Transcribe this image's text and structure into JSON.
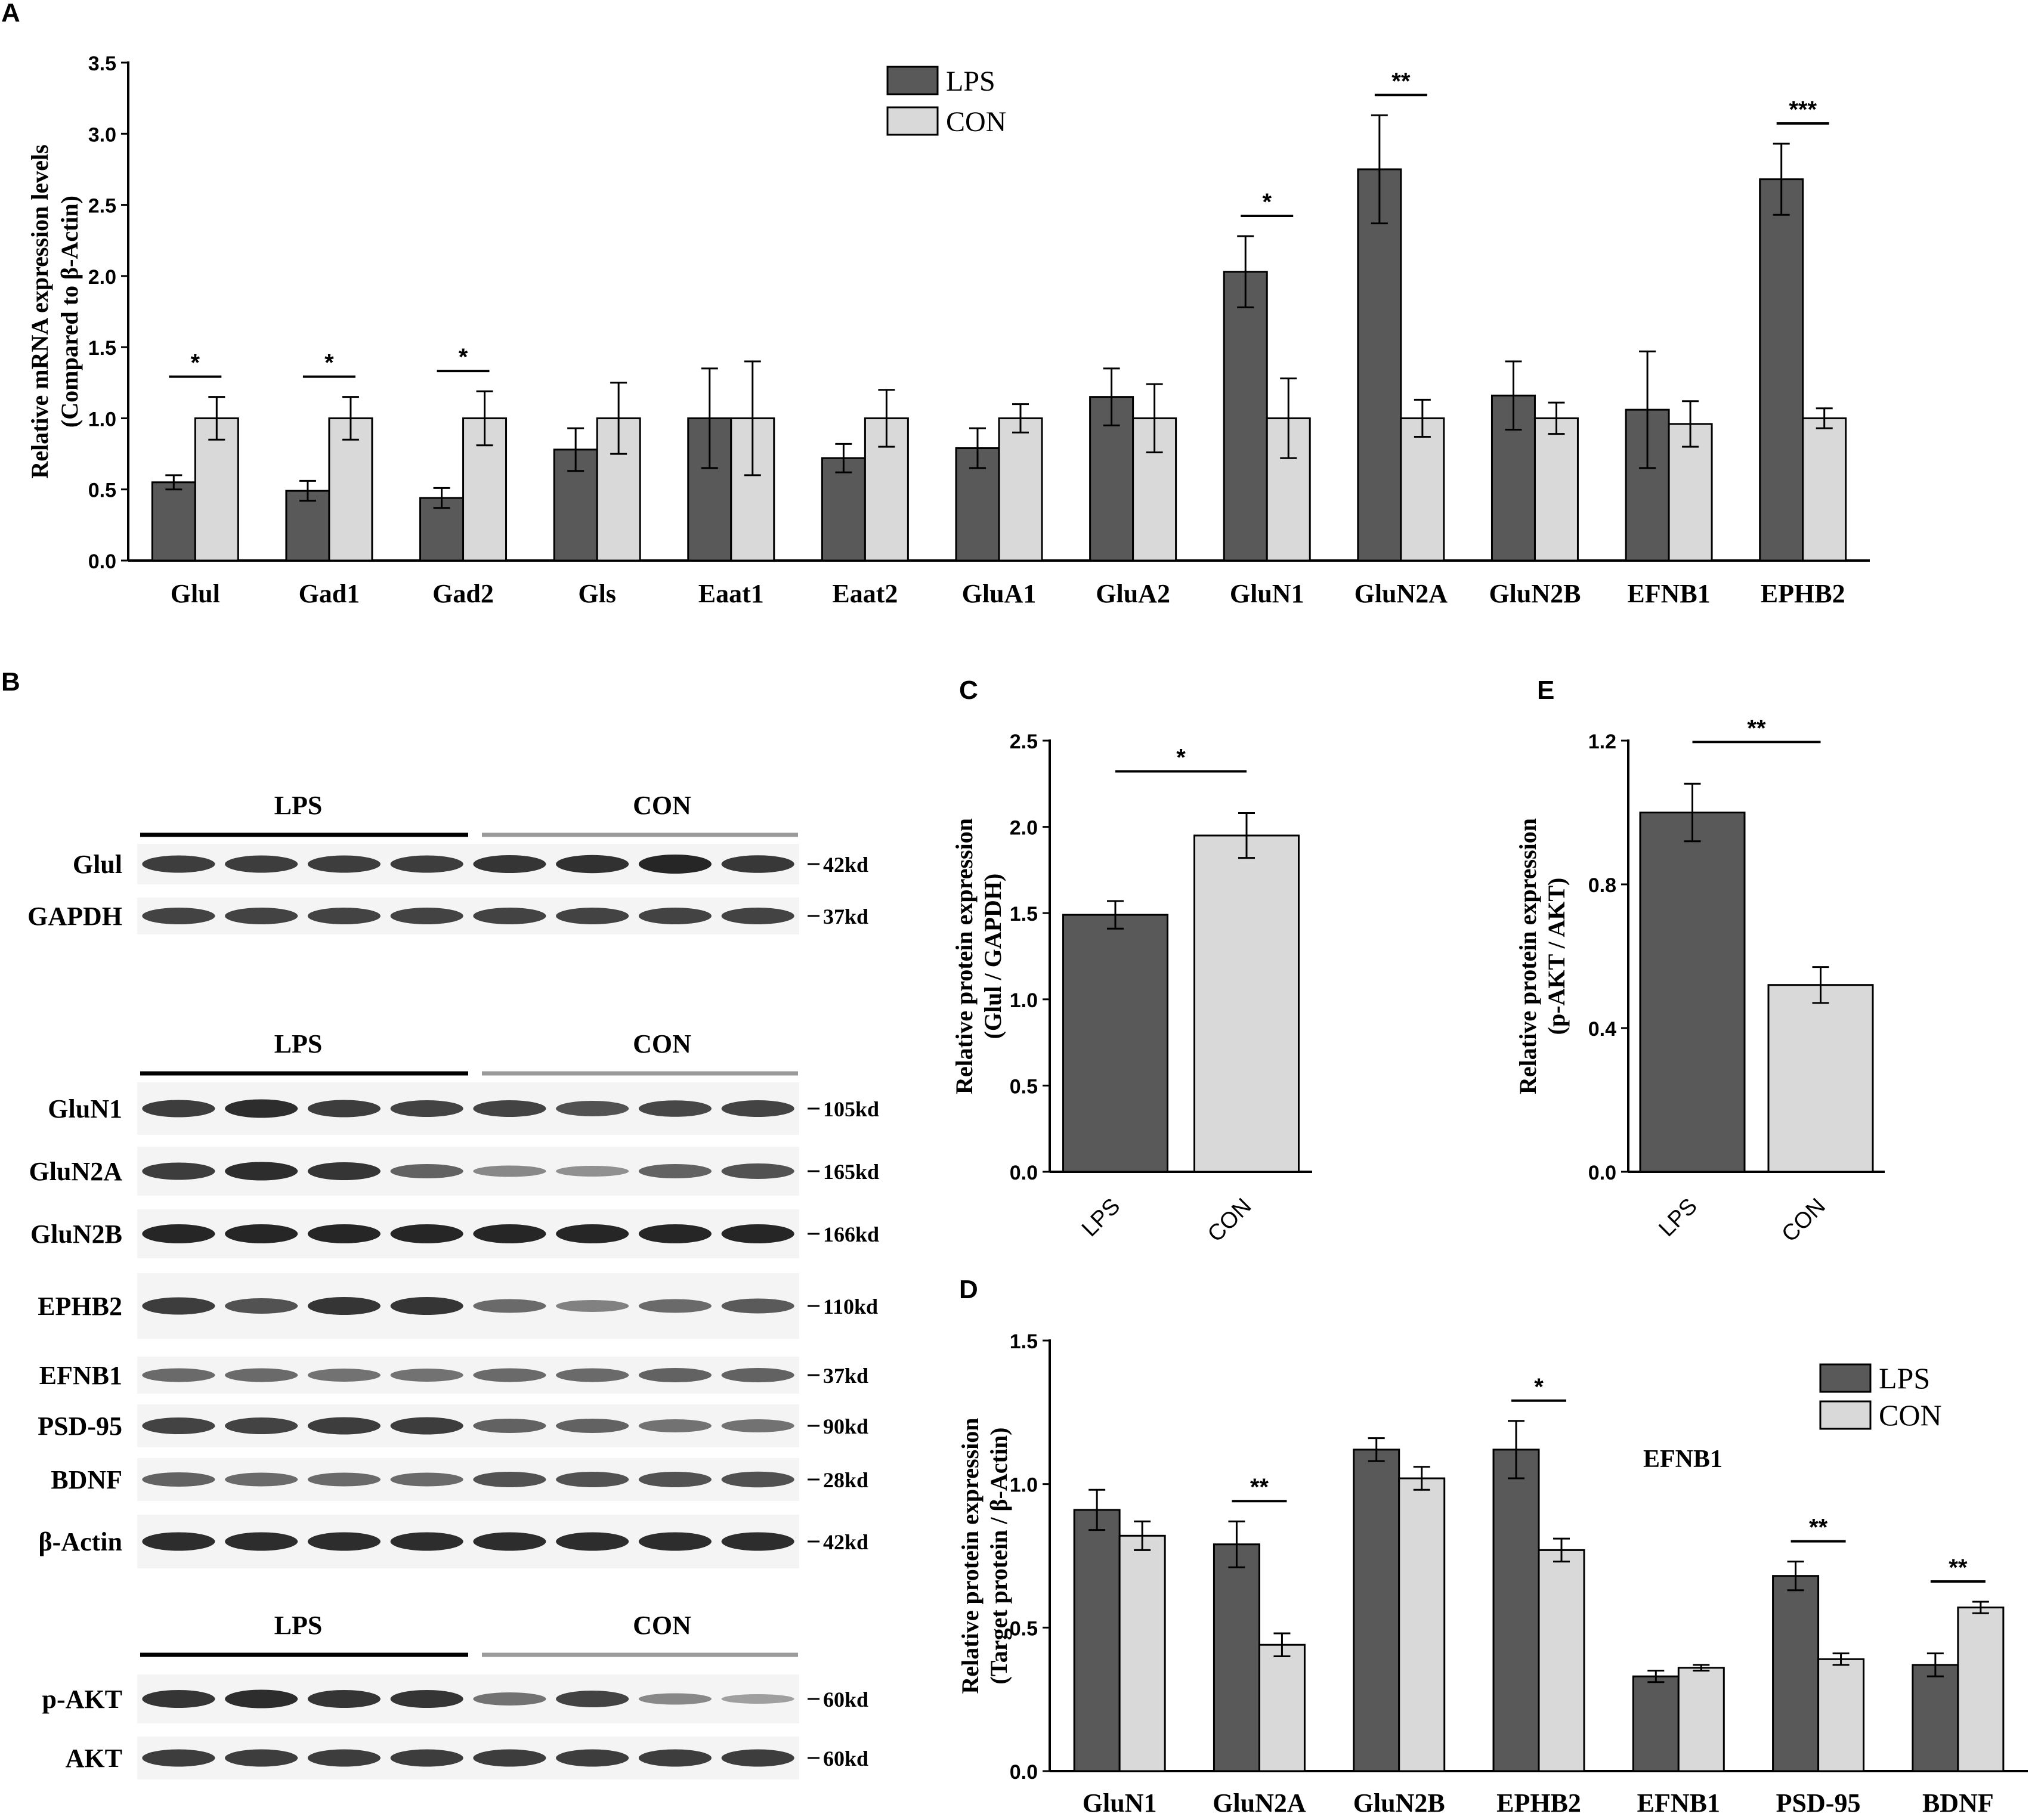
{
  "colors": {
    "lps": "#595959",
    "con": "#d9d9d9",
    "axis": "#000000",
    "blot_bg": "#f4f4f4",
    "band": "#1a1a1a",
    "con_rule": "#9a9a9a"
  },
  "legend": {
    "lps": "LPS",
    "con": "CON"
  },
  "panel_letters": {
    "a": "A",
    "b": "B",
    "c": "C",
    "d": "D",
    "e": "E"
  },
  "chart_data": [
    {
      "id": "A",
      "type": "bar",
      "ylabel": [
        "Relative mRNA expression levels",
        "(Compared to β-Actin)"
      ],
      "ylim": [
        0,
        3.5
      ],
      "yticks": [
        "0.0",
        "0.5",
        "1.0",
        "1.5",
        "2.0",
        "2.5",
        "3.0",
        "3.5"
      ],
      "categories": [
        "Glul",
        "Gad1",
        "Gad2",
        "Gls",
        "Eaat1",
        "Eaat2",
        "GluA1",
        "GluA2",
        "GluN1",
        "GluN2A",
        "GluN2B",
        "EFNB1",
        "EPHB2"
      ],
      "series": [
        {
          "name": "LPS",
          "values": [
            0.55,
            0.49,
            0.44,
            0.78,
            1.0,
            0.72,
            0.79,
            1.15,
            2.03,
            2.75,
            1.16,
            1.06,
            2.68
          ],
          "errors": [
            0.05,
            0.07,
            0.07,
            0.15,
            0.35,
            0.1,
            0.14,
            0.2,
            0.25,
            0.38,
            0.24,
            0.41,
            0.25
          ]
        },
        {
          "name": "CON",
          "values": [
            1.0,
            1.0,
            1.0,
            1.0,
            1.0,
            1.0,
            1.0,
            1.0,
            1.0,
            1.0,
            1.0,
            0.96,
            1.0
          ],
          "errors": [
            0.15,
            0.15,
            0.19,
            0.25,
            0.4,
            0.2,
            0.1,
            0.24,
            0.28,
            0.13,
            0.11,
            0.16,
            0.07
          ]
        }
      ],
      "annotations": [
        {
          "index": 0,
          "text": "*"
        },
        {
          "index": 1,
          "text": "*"
        },
        {
          "index": 2,
          "text": "*"
        },
        {
          "index": 8,
          "text": "*"
        },
        {
          "index": 9,
          "text": "**"
        },
        {
          "index": 12,
          "text": "***"
        }
      ],
      "legend": "top-center",
      "grid": false
    },
    {
      "id": "C",
      "type": "bar",
      "ylabel": [
        "Relative protein expression",
        "(Glul / GAPDH)"
      ],
      "ylim": [
        0,
        2.5
      ],
      "yticks": [
        "0.0",
        "0.5",
        "1.0",
        "1.5",
        "2.0",
        "2.5"
      ],
      "categories": [
        "LPS",
        "CON"
      ],
      "values": [
        1.49,
        1.95
      ],
      "errors": [
        0.08,
        0.13
      ],
      "annotation": "*",
      "grid": false
    },
    {
      "id": "E",
      "type": "bar",
      "ylabel": [
        "Relative protein expression",
        "(p-AKT / AKT)"
      ],
      "ylim": [
        0,
        1.2
      ],
      "yticks": [
        "0.0",
        "0.4",
        "0.8",
        "1.2"
      ],
      "categories": [
        "LPS",
        "CON"
      ],
      "values": [
        1.0,
        0.52
      ],
      "errors": [
        0.08,
        0.05
      ],
      "annotation": "**",
      "grid": false
    },
    {
      "id": "D",
      "type": "bar",
      "ylabel": [
        "Relative protein expression",
        "(Target protein / β-Actin)"
      ],
      "ylim": [
        0,
        1.5
      ],
      "yticks": [
        "0.0",
        "0.5",
        "1.0",
        "1.5"
      ],
      "categories": [
        "GluN1",
        "GluN2A",
        "GluN2B",
        "EPHB2",
        "EFNB1",
        "PSD-95",
        "BDNF"
      ],
      "series": [
        {
          "name": "LPS",
          "values": [
            0.91,
            0.79,
            1.12,
            1.12,
            0.33,
            0.68,
            0.37
          ],
          "errors": [
            0.07,
            0.08,
            0.04,
            0.1,
            0.02,
            0.05,
            0.04
          ]
        },
        {
          "name": "CON",
          "values": [
            0.82,
            0.44,
            1.02,
            0.77,
            0.36,
            0.39,
            0.57
          ],
          "errors": [
            0.05,
            0.04,
            0.04,
            0.04,
            0.01,
            0.02,
            0.02
          ]
        }
      ],
      "annotations": [
        {
          "index": 1,
          "text": "**"
        },
        {
          "index": 3,
          "text": "*"
        },
        {
          "index": 5,
          "text": "**"
        },
        {
          "index": 6,
          "text": "**"
        }
      ],
      "floating_label": "EFNB1",
      "legend": "top-right",
      "grid": false
    }
  ],
  "blots": {
    "group_lps": "LPS",
    "group_con": "CON",
    "section1": {
      "rows": [
        {
          "label": "Glul",
          "mw": "42kd",
          "lps": [
            0.85,
            0.85,
            0.85,
            0.85
          ],
          "con": [
            0.9,
            0.92,
            1.0,
            0.88
          ]
        },
        {
          "label": "GAPDH",
          "mw": "37kd",
          "lps": [
            0.8,
            0.8,
            0.8,
            0.8
          ],
          "con": [
            0.8,
            0.8,
            0.8,
            0.8
          ]
        }
      ]
    },
    "section2": {
      "rows": [
        {
          "label": "GluN1",
          "mw": "105kd",
          "lps": [
            0.85,
            0.95,
            0.85,
            0.8
          ],
          "con": [
            0.8,
            0.7,
            0.78,
            0.8
          ]
        },
        {
          "label": "GluN2A",
          "mw": "165kd",
          "lps": [
            0.85,
            0.95,
            0.9,
            0.6
          ],
          "con": [
            0.35,
            0.3,
            0.6,
            0.7
          ]
        },
        {
          "label": "GluN2B",
          "mw": "166kd",
          "lps": [
            1.0,
            1.0,
            1.0,
            1.0
          ],
          "con": [
            1.0,
            1.0,
            1.0,
            1.0
          ]
        },
        {
          "label": "EPHB2",
          "mw": "110kd",
          "lps": [
            0.85,
            0.7,
            0.9,
            0.9
          ],
          "con": [
            0.55,
            0.4,
            0.55,
            0.65
          ]
        },
        {
          "label": "EFNB1",
          "mw": "37kd",
          "lps": [
            0.55,
            0.55,
            0.5,
            0.5
          ],
          "con": [
            0.55,
            0.55,
            0.6,
            0.6
          ]
        },
        {
          "label": "PSD-95",
          "mw": "90kd",
          "lps": [
            0.8,
            0.8,
            0.85,
            0.85
          ],
          "con": [
            0.6,
            0.6,
            0.5,
            0.5
          ]
        },
        {
          "label": "BDNF",
          "mw": "28kd",
          "lps": [
            0.6,
            0.55,
            0.55,
            0.55
          ],
          "con": [
            0.7,
            0.7,
            0.7,
            0.72
          ]
        },
        {
          "label": "β-Actin",
          "mw": "42kd",
          "lps": [
            0.95,
            0.95,
            0.95,
            0.95
          ],
          "con": [
            0.95,
            0.95,
            0.95,
            0.95
          ]
        }
      ]
    },
    "section3": {
      "rows": [
        {
          "label": "p-AKT",
          "mw": "60kd",
          "lps": [
            0.9,
            0.95,
            0.9,
            0.9
          ],
          "con": [
            0.5,
            0.8,
            0.35,
            0.2
          ]
        },
        {
          "label": "AKT",
          "mw": "60kd",
          "lps": [
            0.85,
            0.85,
            0.85,
            0.85
          ],
          "con": [
            0.85,
            0.85,
            0.85,
            0.85
          ]
        }
      ]
    }
  }
}
